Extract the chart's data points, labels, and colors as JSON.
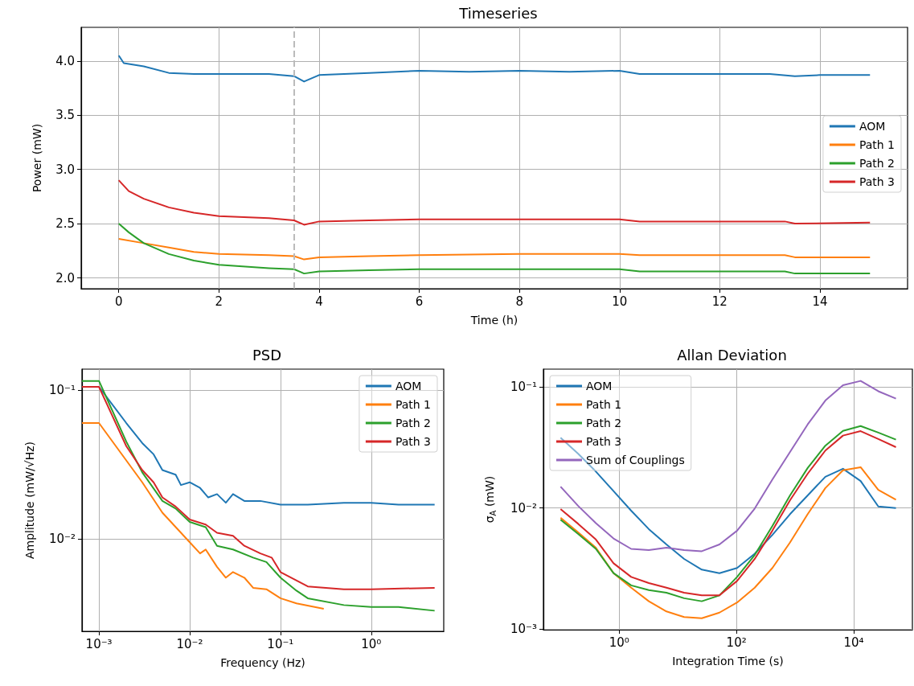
{
  "chart_data": [
    {
      "type": "line",
      "title": "Timeseries",
      "xlabel": "Time (h)",
      "ylabel": "Power (mW)",
      "xlim": [
        -0.75,
        15.75
      ],
      "xticks": [
        0,
        2,
        4,
        6,
        8,
        10,
        12,
        14
      ],
      "ylim": [
        1.9,
        4.31
      ],
      "yticks": [
        {
          "value": 2,
          "label": "2.0"
        },
        2.5,
        {
          "value": 3,
          "label": "3.0"
        },
        3.5,
        {
          "value": 4,
          "label": "4.0"
        }
      ],
      "grid": true,
      "legend": "right",
      "ref_lines": [
        {
          "axis": "x",
          "value": 3.5,
          "color": "#bbbbbb",
          "line_style": "dashed"
        }
      ],
      "series": [
        {
          "name": "AOM",
          "color": "#1f77b4",
          "x": [
            0,
            0.1,
            0.5,
            1,
            1.5,
            2,
            3,
            3.5,
            3.7,
            4,
            5,
            6,
            7,
            8,
            9,
            10,
            10.4,
            11,
            12,
            13,
            13.5,
            14,
            15
          ],
          "values": [
            4.05,
            3.98,
            3.95,
            3.89,
            3.88,
            3.88,
            3.88,
            3.86,
            3.81,
            3.87,
            3.89,
            3.91,
            3.9,
            3.91,
            3.9,
            3.91,
            3.88,
            3.88,
            3.88,
            3.88,
            3.86,
            3.87,
            3.87
          ]
        },
        {
          "name": "Path 1",
          "color": "#ff7f0e",
          "x": [
            0,
            0.5,
            1,
            1.5,
            2,
            3,
            3.5,
            3.7,
            4,
            5,
            6,
            8,
            10,
            10.4,
            12,
            13.3,
            13.5,
            15
          ],
          "values": [
            2.36,
            2.32,
            2.28,
            2.24,
            2.22,
            2.21,
            2.2,
            2.17,
            2.19,
            2.2,
            2.21,
            2.22,
            2.22,
            2.21,
            2.21,
            2.21,
            2.19,
            2.19
          ]
        },
        {
          "name": "Path 2",
          "color": "#2ca02c",
          "x": [
            0,
            0.2,
            0.5,
            1,
            1.5,
            2,
            3,
            3.5,
            3.6,
            3.7,
            4,
            5,
            6,
            8,
            10,
            10.4,
            12,
            13.3,
            13.5,
            15
          ],
          "values": [
            2.5,
            2.42,
            2.32,
            2.22,
            2.16,
            2.12,
            2.09,
            2.08,
            2.06,
            2.04,
            2.06,
            2.07,
            2.08,
            2.08,
            2.08,
            2.06,
            2.06,
            2.06,
            2.04,
            2.04
          ]
        },
        {
          "name": "Path 3",
          "color": "#d62728",
          "x": [
            0,
            0.2,
            0.5,
            1,
            1.5,
            2,
            3,
            3.5,
            3.7,
            4,
            5,
            6,
            7,
            8,
            9,
            10,
            10.4,
            12,
            13.3,
            13.5,
            15
          ],
          "values": [
            2.9,
            2.8,
            2.73,
            2.65,
            2.6,
            2.57,
            2.55,
            2.53,
            2.49,
            2.52,
            2.53,
            2.54,
            2.54,
            2.54,
            2.54,
            2.54,
            2.52,
            2.52,
            2.52,
            2.5,
            2.51
          ]
        }
      ]
    },
    {
      "type": "line",
      "title": "PSD",
      "xlabel": "Frequency (Hz)",
      "ylabel": "Amplitude (mW/√Hz)",
      "log": "xy",
      "xlim": [
        0.00065,
        6.3
      ],
      "xticks": [
        {
          "value": 0.001,
          "label": "10⁻³"
        },
        {
          "value": 0.01,
          "label": "10⁻²"
        },
        {
          "value": 0.1,
          "label": "10⁻¹"
        },
        {
          "value": 1,
          "label": "10⁰"
        }
      ],
      "ylim": [
        0.0024,
        0.138
      ],
      "yticks": [
        {
          "value": 0.01,
          "label": "10⁻²"
        },
        {
          "value": 0.1,
          "label": "10⁻¹"
        }
      ],
      "grid": true,
      "legend": "top right",
      "series": [
        {
          "name": "AOM",
          "color": "#1f77b4",
          "x": [
            0.00065,
            0.001,
            0.002,
            0.003,
            0.004,
            0.005,
            0.007,
            0.008,
            0.01,
            0.013,
            0.016,
            0.02,
            0.025,
            0.03,
            0.04,
            0.06,
            0.1,
            0.2,
            0.5,
            1,
            2,
            5
          ],
          "values": [
            0.105,
            0.105,
            0.06,
            0.044,
            0.037,
            0.029,
            0.027,
            0.023,
            0.024,
            0.022,
            0.019,
            0.02,
            0.0175,
            0.02,
            0.018,
            0.018,
            0.017,
            0.017,
            0.0175,
            0.0175,
            0.017,
            0.017
          ]
        },
        {
          "name": "Path 1",
          "color": "#ff7f0e",
          "x": [
            0.00065,
            0.001,
            0.003,
            0.005,
            0.01,
            0.013,
            0.015,
            0.02,
            0.025,
            0.03,
            0.04,
            0.05,
            0.07,
            0.1,
            0.15,
            0.3
          ],
          "values": [
            0.06,
            0.06,
            0.024,
            0.015,
            0.0095,
            0.008,
            0.0085,
            0.0065,
            0.0055,
            0.006,
            0.0055,
            0.0047,
            0.0046,
            0.004,
            0.0037,
            0.0034
          ]
        },
        {
          "name": "Path 2",
          "color": "#2ca02c",
          "x": [
            0.00065,
            0.001,
            0.002,
            0.003,
            0.005,
            0.007,
            0.01,
            0.015,
            0.02,
            0.03,
            0.05,
            0.07,
            0.1,
            0.15,
            0.2,
            0.5,
            1,
            2,
            5
          ],
          "values": [
            0.115,
            0.115,
            0.045,
            0.028,
            0.018,
            0.016,
            0.013,
            0.012,
            0.009,
            0.0085,
            0.0075,
            0.007,
            0.0055,
            0.0045,
            0.004,
            0.0036,
            0.0035,
            0.0035,
            0.0033
          ]
        },
        {
          "name": "Path 3",
          "color": "#d62728",
          "x": [
            0.00065,
            0.001,
            0.002,
            0.003,
            0.004,
            0.005,
            0.007,
            0.01,
            0.015,
            0.02,
            0.03,
            0.04,
            0.06,
            0.08,
            0.1,
            0.2,
            0.5,
            1,
            5
          ],
          "values": [
            0.105,
            0.105,
            0.042,
            0.029,
            0.024,
            0.019,
            0.0165,
            0.0135,
            0.0125,
            0.011,
            0.0105,
            0.009,
            0.008,
            0.0075,
            0.006,
            0.0048,
            0.0046,
            0.0046,
            0.0047
          ]
        }
      ]
    },
    {
      "type": "line",
      "title": "Allan Deviation",
      "xlabel": "Integration Time (s)",
      "ylabel": "σ$_{A}$ (mW)",
      "log": "xy",
      "xlim": [
        0.051,
        100000
      ],
      "xticks": [
        {
          "value": 1,
          "label": "10⁰"
        },
        {
          "value": 100,
          "label": "10²"
        },
        {
          "value": 10000,
          "label": "10⁴"
        }
      ],
      "ylim": [
        0.00099,
        0.14
      ],
      "yticks": [
        {
          "value": 0.001,
          "label": "10⁻³"
        },
        {
          "value": 0.01,
          "label": "10⁻²"
        },
        {
          "value": 0.1,
          "label": "10⁻¹"
        }
      ],
      "grid": true,
      "legend": "top left",
      "x": [
        0.1,
        0.2,
        0.4,
        0.8,
        1.6,
        3.2,
        6.4,
        12.8,
        25.6,
        51.2,
        102.4,
        204.8,
        409.6,
        819.2,
        1638.4,
        3276.8,
        6553.6,
        13107.2,
        26214.4,
        52428.8
      ],
      "series": [
        {
          "name": "AOM",
          "color": "#1f77b4",
          "values": [
            0.038,
            0.028,
            0.02,
            0.0138,
            0.0095,
            0.0067,
            0.005,
            0.0038,
            0.0031,
            0.0029,
            0.0032,
            0.0042,
            0.006,
            0.0089,
            0.0127,
            0.0181,
            0.0211,
            0.0167,
            0.0103,
            0.01
          ]
        },
        {
          "name": "Path 1",
          "color": "#ff7f0e",
          "values": [
            0.0083,
            0.0063,
            0.0047,
            0.0029,
            0.0022,
            0.0017,
            0.0014,
            0.00126,
            0.00123,
            0.00137,
            0.00166,
            0.0022,
            0.0032,
            0.0052,
            0.0089,
            0.0146,
            0.0205,
            0.0217,
            0.0141,
            0.0117
          ]
        },
        {
          "name": "Path 2",
          "color": "#2ca02c",
          "values": [
            0.008,
            0.0061,
            0.0046,
            0.0029,
            0.0023,
            0.0021,
            0.002,
            0.0018,
            0.0017,
            0.0019,
            0.0027,
            0.0041,
            0.0071,
            0.0127,
            0.0214,
            0.0327,
            0.0433,
            0.0475,
            0.0419,
            0.0367
          ]
        },
        {
          "name": "Path 3",
          "color": "#d62728",
          "values": [
            0.0098,
            0.0074,
            0.0055,
            0.0035,
            0.0027,
            0.0024,
            0.0022,
            0.002,
            0.0019,
            0.0019,
            0.0025,
            0.0038,
            0.0065,
            0.0116,
            0.0192,
            0.0298,
            0.0396,
            0.0431,
            0.0371,
            0.0318
          ]
        },
        {
          "name": "Sum of Couplings",
          "color": "#9467bd",
          "values": [
            0.015,
            0.0104,
            0.0075,
            0.0056,
            0.0046,
            0.0045,
            0.0047,
            0.0045,
            0.0044,
            0.005,
            0.0065,
            0.0099,
            0.0172,
            0.029,
            0.049,
            0.077,
            0.103,
            0.112,
            0.092,
            0.08
          ]
        }
      ]
    }
  ]
}
